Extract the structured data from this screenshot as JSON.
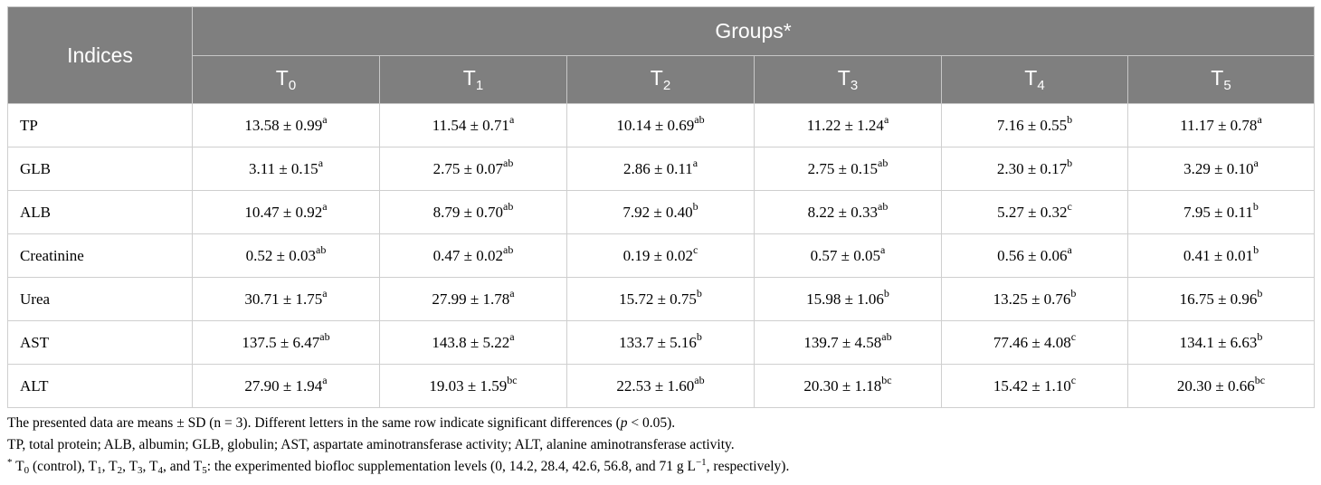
{
  "table": {
    "indices_header": "Indices",
    "groups_header": "Groups*",
    "columns": [
      {
        "base": "T",
        "sub": "0"
      },
      {
        "base": "T",
        "sub": "1"
      },
      {
        "base": "T",
        "sub": "2"
      },
      {
        "base": "T",
        "sub": "3"
      },
      {
        "base": "T",
        "sub": "4"
      },
      {
        "base": "T",
        "sub": "5"
      }
    ],
    "rows": [
      {
        "label": "TP",
        "cells": [
          {
            "v": "13.58 ± 0.99",
            "s": "a"
          },
          {
            "v": "11.54 ± 0.71",
            "s": "a"
          },
          {
            "v": "10.14 ± 0.69",
            "s": "ab"
          },
          {
            "v": "11.22 ± 1.24",
            "s": "a"
          },
          {
            "v": "7.16 ± 0.55",
            "s": "b"
          },
          {
            "v": "11.17 ± 0.78",
            "s": "a"
          }
        ]
      },
      {
        "label": "GLB",
        "cells": [
          {
            "v": "3.11 ± 0.15",
            "s": "a"
          },
          {
            "v": "2.75 ± 0.07",
            "s": "ab"
          },
          {
            "v": "2.86 ± 0.11",
            "s": "a"
          },
          {
            "v": "2.75 ± 0.15",
            "s": "ab"
          },
          {
            "v": "2.30 ± 0.17",
            "s": "b"
          },
          {
            "v": "3.29 ± 0.10",
            "s": "a"
          }
        ]
      },
      {
        "label": "ALB",
        "cells": [
          {
            "v": "10.47 ± 0.92",
            "s": "a"
          },
          {
            "v": "8.79 ± 0.70",
            "s": "ab"
          },
          {
            "v": "7.92 ± 0.40",
            "s": "b"
          },
          {
            "v": "8.22 ± 0.33",
            "s": "ab"
          },
          {
            "v": "5.27 ± 0.32",
            "s": "c"
          },
          {
            "v": "7.95 ± 0.11",
            "s": "b"
          }
        ]
      },
      {
        "label": "Creatinine",
        "cells": [
          {
            "v": "0.52 ± 0.03",
            "s": "ab"
          },
          {
            "v": "0.47 ± 0.02",
            "s": "ab"
          },
          {
            "v": "0.19 ± 0.02",
            "s": "c"
          },
          {
            "v": "0.57 ± 0.05",
            "s": "a"
          },
          {
            "v": "0.56 ± 0.06",
            "s": "a"
          },
          {
            "v": "0.41 ± 0.01",
            "s": "b"
          }
        ]
      },
      {
        "label": "Urea",
        "cells": [
          {
            "v": "30.71 ± 1.75",
            "s": "a"
          },
          {
            "v": "27.99 ± 1.78",
            "s": "a"
          },
          {
            "v": "15.72 ± 0.75",
            "s": "b"
          },
          {
            "v": "15.98 ± 1.06",
            "s": "b"
          },
          {
            "v": "13.25 ± 0.76",
            "s": "b"
          },
          {
            "v": "16.75 ± 0.96",
            "s": "b"
          }
        ]
      },
      {
        "label": "AST",
        "cells": [
          {
            "v": "137.5 ± 6.47",
            "s": "ab"
          },
          {
            "v": "143.8 ± 5.22",
            "s": "a"
          },
          {
            "v": "133.7 ± 5.16",
            "s": "b"
          },
          {
            "v": "139.7 ± 4.58",
            "s": "ab"
          },
          {
            "v": "77.46 ± 4.08",
            "s": "c"
          },
          {
            "v": "134.1 ± 6.63",
            "s": "b"
          }
        ]
      },
      {
        "label": "ALT",
        "cells": [
          {
            "v": "27.90 ± 1.94",
            "s": "a"
          },
          {
            "v": "19.03 ± 1.59",
            "s": "bc"
          },
          {
            "v": "22.53 ± 1.60",
            "s": "ab"
          },
          {
            "v": "20.30 ± 1.18",
            "s": "bc"
          },
          {
            "v": "15.42 ± 1.10",
            "s": "c"
          },
          {
            "v": "20.30 ± 0.66",
            "s": "bc"
          }
        ]
      }
    ]
  },
  "notes": {
    "line1_a": "The presented data are means ± SD (n = 3). Different letters in the same row indicate significant differences (",
    "line1_p": "p",
    "line1_b": " < 0.05).",
    "line2": "TP, total protein; ALB, albumin; GLB, globulin; AST, aspartate aminotransferase activity; ALT, alanine aminotransferase activity.",
    "line3_star": "*",
    "line3_t0": "T",
    "line3_t0_sub": "0",
    "line3_a": " (control), ",
    "line3_t1": "T",
    "line3_t1_sub": "1",
    "line3_sep1": ", ",
    "line3_t2": "T",
    "line3_t2_sub": "2",
    "line3_sep2": ", ",
    "line3_t3": "T",
    "line3_t3_sub": "3",
    "line3_sep3": ", ",
    "line3_t4": "T",
    "line3_t4_sub": "4",
    "line3_and": ", and ",
    "line3_t5": "T",
    "line3_t5_sub": "5",
    "line3_b": ": the experimented biofloc supplementation levels (0, 14.2, 28.4, 42.6, 56.8, and 71 g L",
    "line3_exp": "−1",
    "line3_c": ", respectively)."
  }
}
